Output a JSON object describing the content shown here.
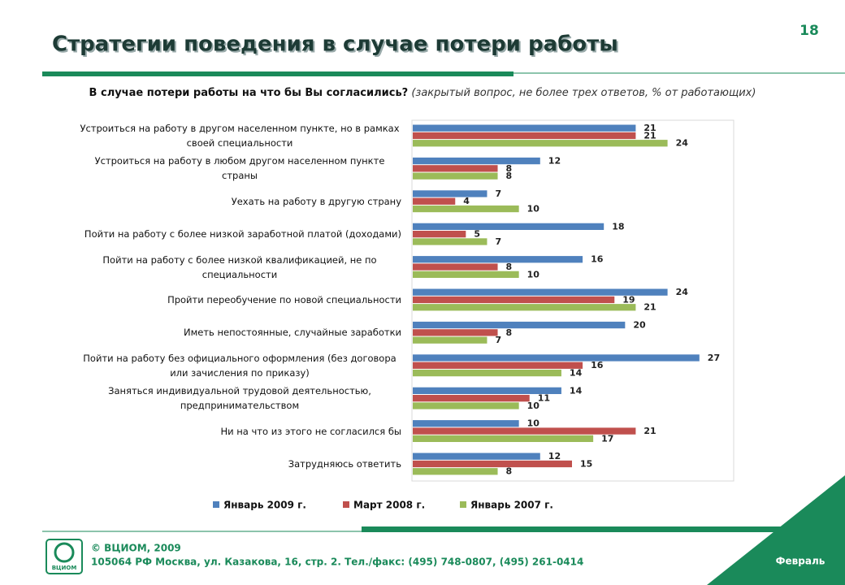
{
  "header": {
    "title": "Стратегии поведения в случае потери работы",
    "page_number": "18"
  },
  "chart_data": {
    "type": "hbar",
    "question": "В случае потери работы на что бы Вы согласились?",
    "note": "(закрытый вопрос, не более трех ответов, % от работающих)",
    "categories": [
      "Устроиться на работу в другом населенном пункте, но в рамках своей специальности",
      "Устроиться на работу в любом другом населенном пункте страны",
      "Уехать на работу в другую страну",
      "Пойти на работу с более низкой заработной платой (доходами)",
      "Пойти на работу с более низкой квалификацией, не по специальности",
      "Пройти переобучение по новой специальности",
      "Иметь непостоянные, случайные заработки",
      "Пойти на работу без официального оформления (без договора или зачисления по приказу)",
      "Заняться индивидуальной трудовой деятельностью, предпринимательством",
      "Ни на что из этого не согласился бы",
      "Затрудняюсь ответить"
    ],
    "series": [
      {
        "name": "Январь 2009 г.",
        "color": "#4f81bd",
        "values": [
          21,
          12,
          7,
          18,
          16,
          24,
          20,
          27,
          14,
          10,
          12
        ]
      },
      {
        "name": "Март 2008 г.",
        "color": "#c0504d",
        "values": [
          21,
          8,
          4,
          5,
          8,
          19,
          8,
          16,
          11,
          21,
          15
        ]
      },
      {
        "name": "Январь 2007 г.",
        "color": "#9bbb59",
        "values": [
          24,
          8,
          10,
          7,
          10,
          21,
          7,
          14,
          10,
          17,
          8
        ]
      }
    ],
    "xlim": [
      0,
      30
    ]
  },
  "footer": {
    "logo": "ВЦИОМ",
    "copyright": "© ВЦИОМ, 2009",
    "address": "105064 РФ Москва, ул. Казакова, 16, стр. 2. Тел./факс: (495) 748-0807, (495) 261-0414",
    "month": "Февраль"
  }
}
